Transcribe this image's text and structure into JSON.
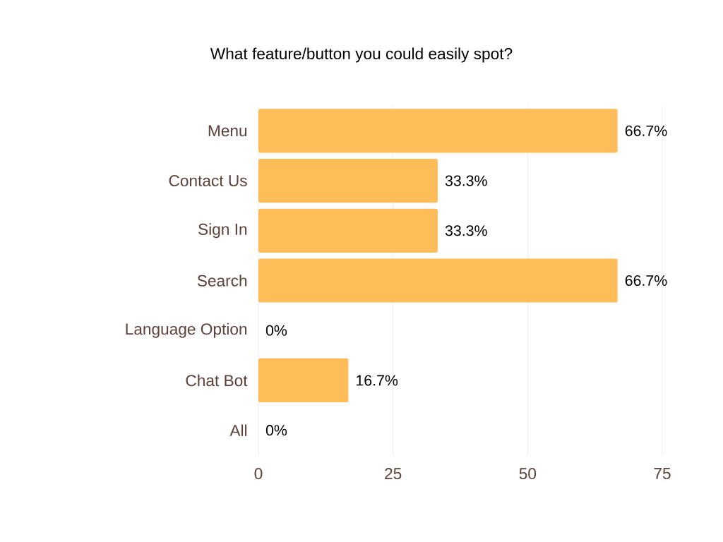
{
  "chart_data": {
    "type": "bar",
    "orientation": "horizontal",
    "title": "What feature/button you could easily spot?",
    "categories": [
      "Menu",
      "Contact Us",
      "Sign In",
      "Search",
      "Language Option",
      "Chat Bot",
      "All"
    ],
    "values": [
      66.7,
      33.3,
      33.3,
      66.7,
      0,
      16.7,
      0
    ],
    "value_labels": [
      "66.7%",
      "33.3%",
      "33.3%",
      "66.7%",
      "0%",
      "16.7%",
      "0%"
    ],
    "color": "#ffbd59",
    "xlim": [
      0,
      75
    ],
    "xticks": [
      0,
      25,
      50,
      75
    ],
    "grid": "x"
  }
}
